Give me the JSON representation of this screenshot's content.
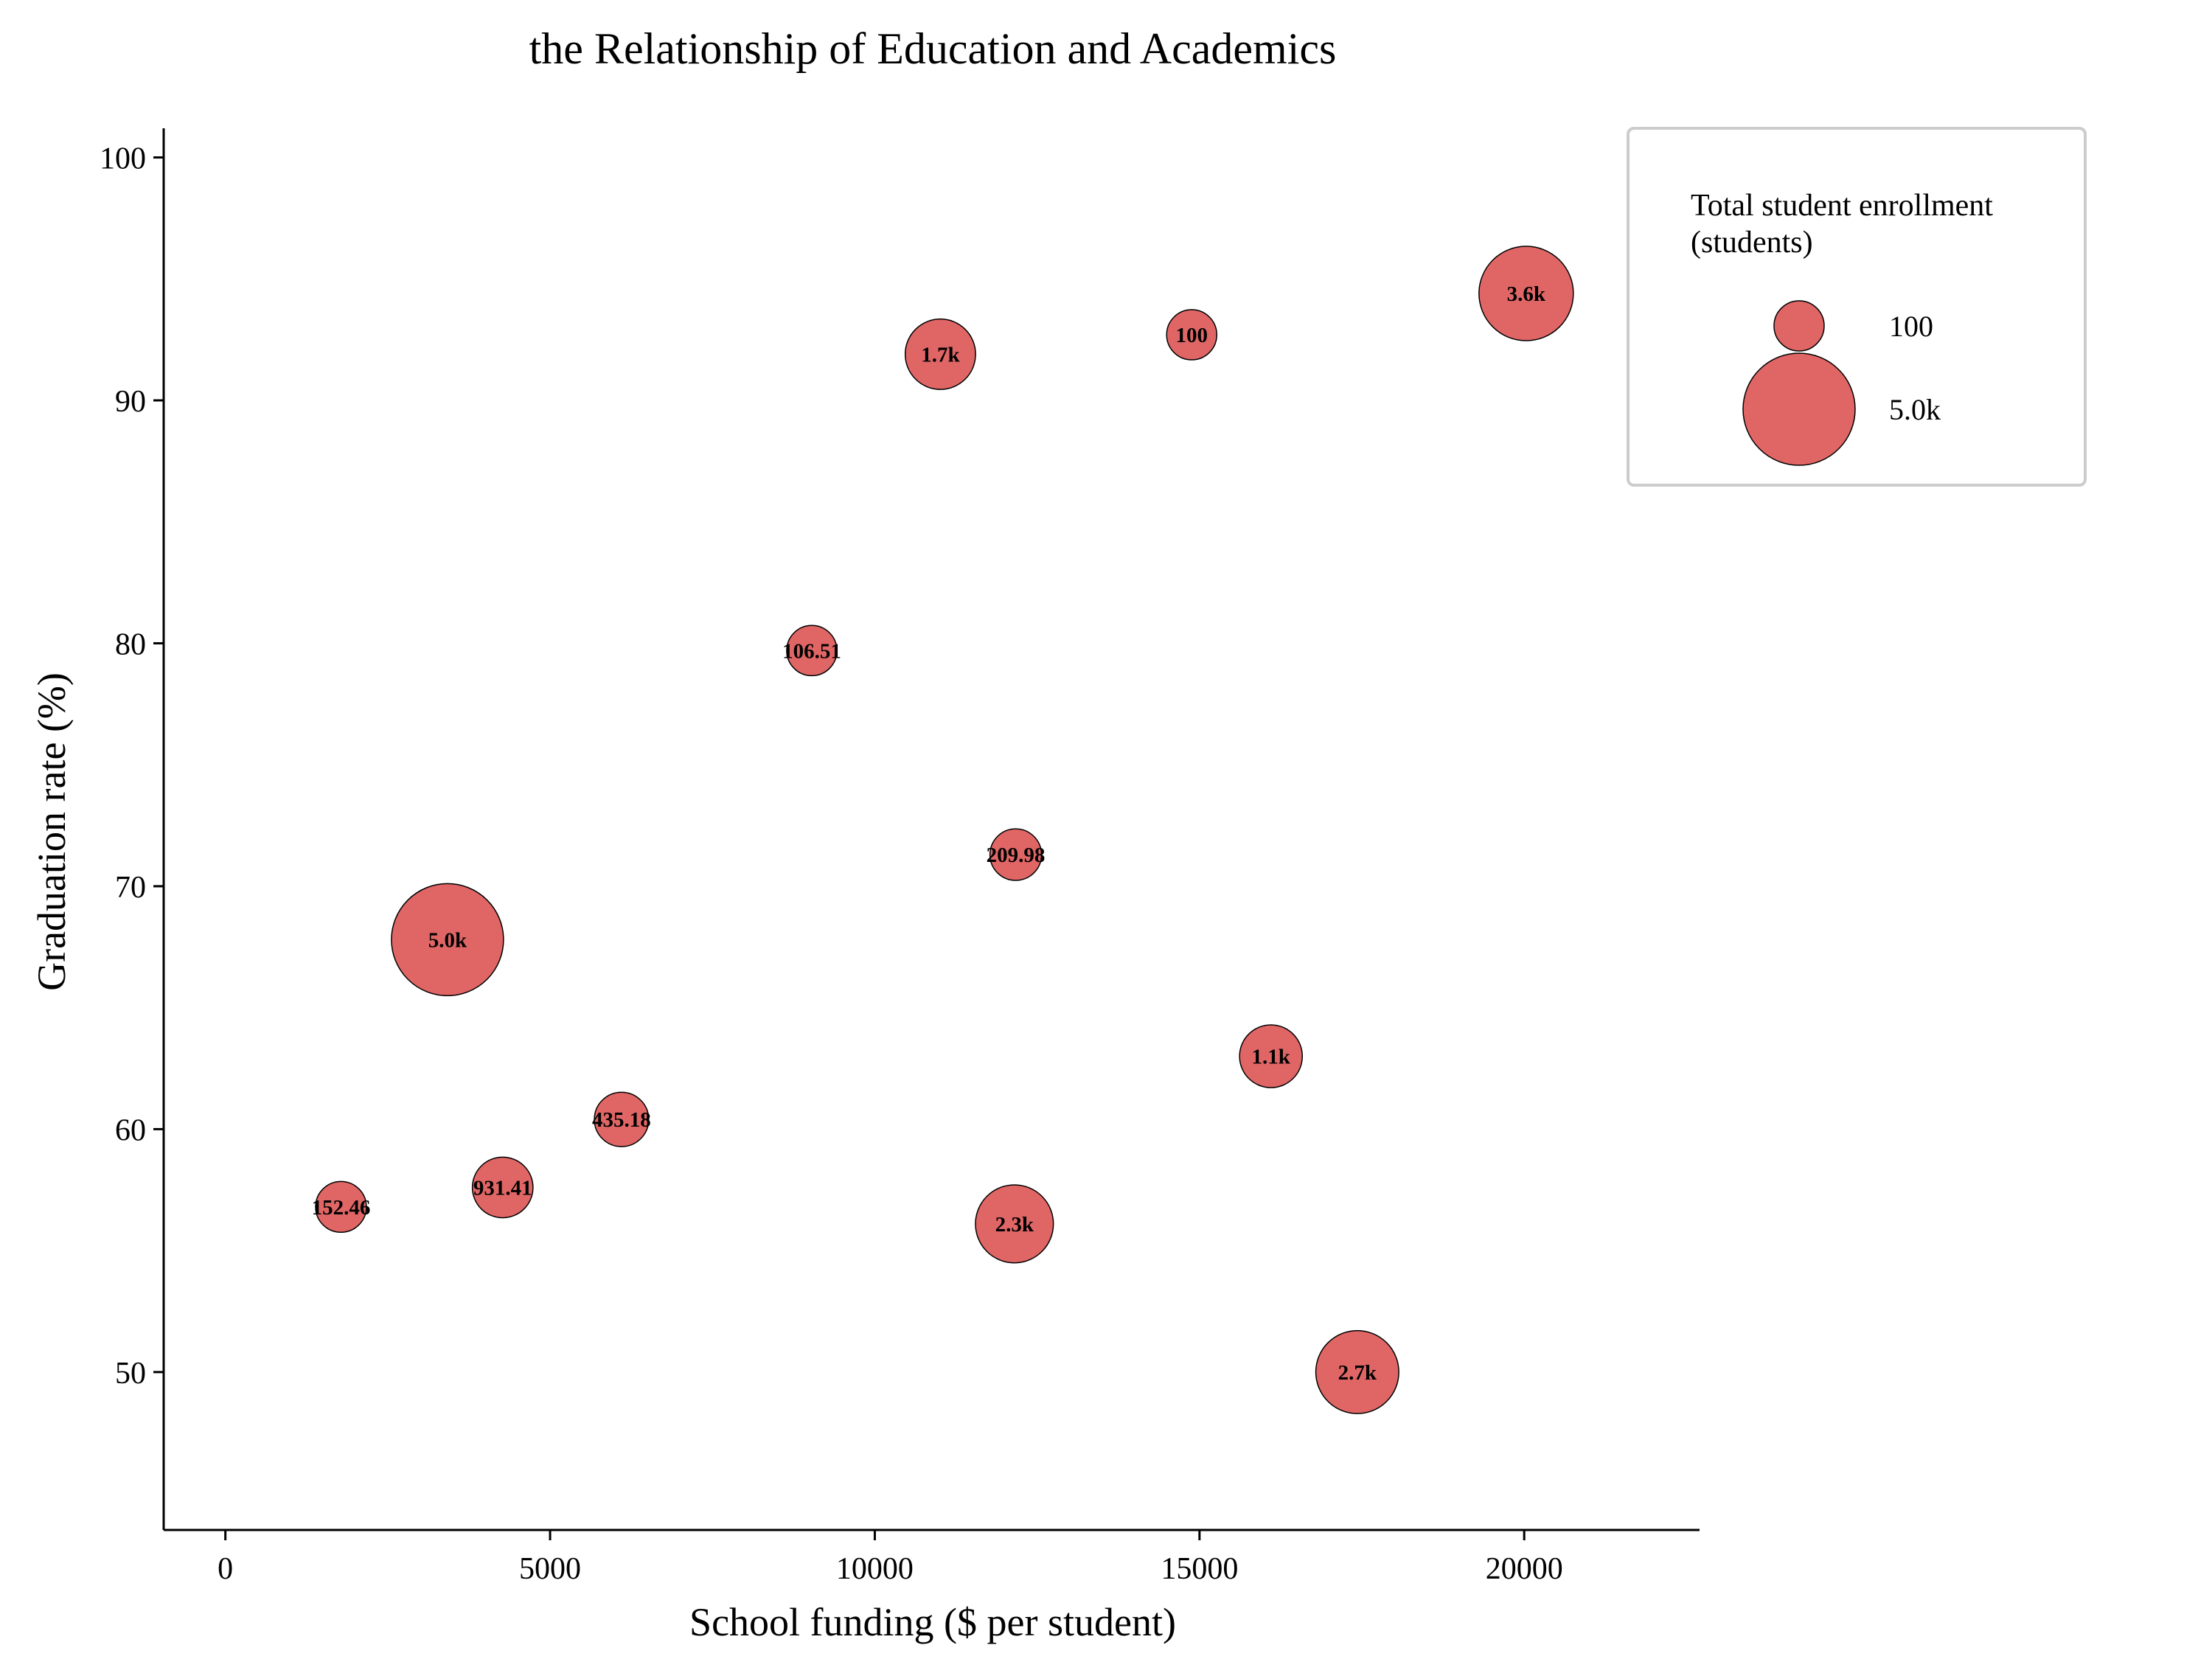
{
  "chart_data": {
    "type": "scatter",
    "title": "the Relationship of Education and Academics",
    "xlabel": "School funding ($ per student)",
    "ylabel": "Graduation rate (%)",
    "xlim": [
      -950,
      22700
    ],
    "ylim": [
      43.5,
      101.2
    ],
    "xticks": [
      0,
      5000,
      10000,
      15000,
      20000
    ],
    "xtick_labels": [
      "0",
      "5000",
      "10000",
      "15000",
      "20000"
    ],
    "yticks": [
      50,
      60,
      70,
      80,
      90,
      100
    ],
    "ytick_labels": [
      "50",
      "60",
      "70",
      "80",
      "90",
      "100"
    ],
    "grid": false,
    "bubble_color": "#e06666",
    "bubble_edge_color": "#000000",
    "points": [
      {
        "x": 1780,
        "y": 56.8,
        "size": 152.46,
        "label": "152.46"
      },
      {
        "x": 3420,
        "y": 67.8,
        "size": 5000,
        "label": "5.0k"
      },
      {
        "x": 4270,
        "y": 57.6,
        "size": 931.41,
        "label": "931.41"
      },
      {
        "x": 6100,
        "y": 60.4,
        "size": 435.18,
        "label": "435.18"
      },
      {
        "x": 9030,
        "y": 79.7,
        "size": 106.51,
        "label": "106.51"
      },
      {
        "x": 11010,
        "y": 91.9,
        "size": 1700,
        "label": "1.7k"
      },
      {
        "x": 12170,
        "y": 71.3,
        "size": 209.98,
        "label": "209.98"
      },
      {
        "x": 12150,
        "y": 56.1,
        "size": 2300,
        "label": "2.3k"
      },
      {
        "x": 14880,
        "y": 92.7,
        "size": 100,
        "label": "100"
      },
      {
        "x": 16100,
        "y": 63.0,
        "size": 1100,
        "label": "1.1k"
      },
      {
        "x": 17430,
        "y": 50.0,
        "size": 2700,
        "label": "2.7k"
      },
      {
        "x": 20030,
        "y": 94.4,
        "size": 3600,
        "label": "3.6k"
      }
    ],
    "legend": {
      "title": "Total student enrollment\n(students)",
      "placement": "top-right",
      "items": [
        {
          "size": 100,
          "label": "100"
        },
        {
          "size": 5000,
          "label": "5.0k"
        }
      ]
    }
  }
}
